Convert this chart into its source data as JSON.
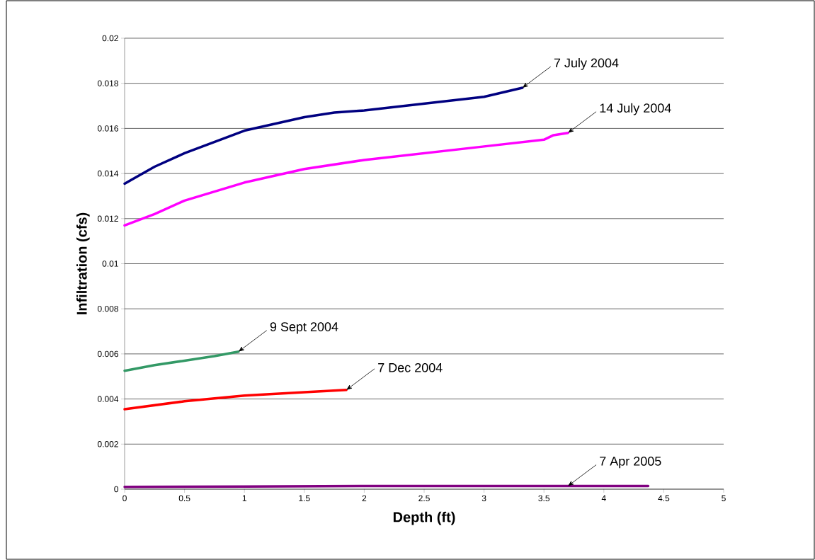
{
  "chart_data": {
    "type": "line",
    "xlabel": "Depth (ft)",
    "ylabel": "Infiltration (cfs)",
    "xlim": [
      0,
      5
    ],
    "xticks": [
      0,
      0.5,
      1,
      1.5,
      2,
      2.5,
      3,
      3.5,
      4,
      4.5,
      5
    ],
    "ylim": [
      0,
      0.02
    ],
    "yticks": [
      0,
      0.002,
      0.004,
      0.006,
      0.008,
      0.01,
      0.012,
      0.014,
      0.016,
      0.018,
      0.02
    ],
    "grid": "y",
    "marker": "none",
    "line_style": "solid",
    "series": [
      {
        "color": "#000080",
        "x": [
          0,
          0.25,
          0.5,
          0.75,
          1.0,
          1.25,
          1.5,
          1.75,
          2.0,
          2.5,
          3.0,
          3.32
        ],
        "values": [
          0.01355,
          0.0143,
          0.0149,
          0.0154,
          0.0159,
          0.0162,
          0.0165,
          0.0167,
          0.0168,
          0.0171,
          0.0174,
          0.0178
        ]
      },
      {
        "color": "#ff00ff",
        "x": [
          0,
          0.25,
          0.5,
          0.75,
          1.0,
          1.25,
          1.5,
          2.0,
          2.5,
          3.0,
          3.5,
          3.58,
          3.7
        ],
        "values": [
          0.0117,
          0.0122,
          0.0128,
          0.0132,
          0.0136,
          0.0139,
          0.0142,
          0.0146,
          0.0149,
          0.0152,
          0.0155,
          0.0157,
          0.0158
        ]
      },
      {
        "color": "#339966",
        "x": [
          0,
          0.25,
          0.5,
          0.75,
          0.95
        ],
        "values": [
          0.00525,
          0.0055,
          0.0057,
          0.0059,
          0.0061
        ]
      },
      {
        "color": "#ff0000",
        "x": [
          0,
          0.5,
          1.0,
          1.5,
          1.85
        ],
        "values": [
          0.00355,
          0.0039,
          0.00415,
          0.0043,
          0.0044
        ]
      },
      {
        "color": "#800080",
        "x": [
          0,
          1.0,
          2.0,
          3.0,
          4.37
        ],
        "values": [
          0.0001,
          0.00012,
          0.00014,
          0.00014,
          0.00014
        ]
      }
    ],
    "annotations": [
      {
        "text": "7 July 2004",
        "x": 3.32,
        "y": 0.0178
      },
      {
        "text": "14 July 2004",
        "x": 3.7,
        "y": 0.0158
      },
      {
        "text": "9 Sept 2004",
        "x": 0.95,
        "y": 0.0061
      },
      {
        "text": "7 Dec 2004",
        "x": 1.85,
        "y": 0.0044
      },
      {
        "text": "7 Apr 2005",
        "x": 3.7,
        "y": 0.00014
      }
    ]
  }
}
